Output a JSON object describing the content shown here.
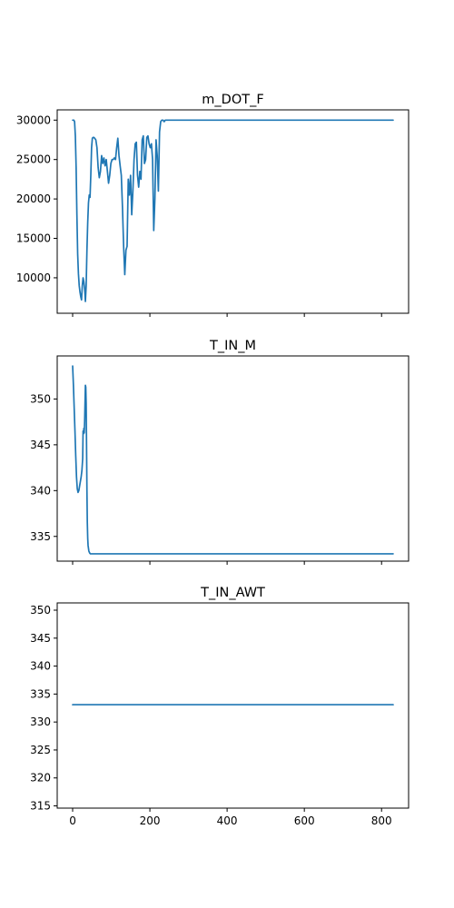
{
  "colors": {
    "series": "#1f77b4"
  },
  "chart_data": [
    {
      "type": "line",
      "title": "m_DOT_F",
      "xlim": [
        -40,
        870
      ],
      "ylim": [
        5500,
        31300
      ],
      "yticks": [
        10000,
        15000,
        20000,
        25000,
        30000
      ],
      "xticks": [
        0,
        200,
        400,
        600,
        800
      ],
      "show_xtick_labels": false,
      "grid": false,
      "series": [
        {
          "x": [
            0,
            3,
            5,
            7,
            9,
            11,
            13,
            15,
            17,
            19,
            21,
            23,
            25,
            27,
            29,
            31,
            33,
            35,
            37,
            39,
            41,
            43,
            45,
            47,
            49,
            51,
            53,
            55,
            57,
            60,
            63,
            66,
            69,
            72,
            75,
            78,
            81,
            84,
            87,
            90,
            93,
            96,
            99,
            102,
            105,
            108,
            111,
            114,
            117,
            120,
            123,
            126,
            129,
            132,
            135,
            138,
            141,
            144,
            147,
            150,
            153,
            156,
            159,
            162,
            165,
            168,
            171,
            174,
            177,
            180,
            183,
            186,
            189,
            192,
            195,
            198,
            201,
            204,
            207,
            210,
            213,
            216,
            219,
            222,
            225,
            228,
            231,
            234,
            237,
            240,
            245,
            250,
            260,
            270,
            280,
            290,
            300,
            310,
            400,
            500,
            600,
            700,
            830
          ],
          "y": [
            30000,
            30000,
            29800,
            28000,
            24000,
            18000,
            13000,
            10500,
            9000,
            8200,
            7600,
            7200,
            9000,
            10000,
            9500,
            8600,
            7000,
            9000,
            13500,
            17000,
            19500,
            20500,
            20200,
            23000,
            26500,
            27700,
            27800,
            27800,
            27700,
            27500,
            26500,
            24000,
            22700,
            23500,
            25500,
            24500,
            25200,
            24200,
            25000,
            23500,
            22000,
            23000,
            24500,
            25000,
            25000,
            25200,
            25000,
            26500,
            27700,
            25500,
            24200,
            23000,
            19000,
            14000,
            10400,
            13500,
            14000,
            22500,
            20500,
            23000,
            18000,
            21000,
            25000,
            27000,
            27200,
            23000,
            21500,
            23500,
            22500,
            27500,
            28000,
            24500,
            25000,
            27800,
            28000,
            27000,
            26500,
            27000,
            25000,
            16000,
            20000,
            27500,
            25500,
            21000,
            28500,
            29800,
            30000,
            30000,
            29800,
            30000,
            30000,
            30000,
            30000,
            30000,
            30000,
            30000,
            30000,
            30000,
            30000,
            30000,
            30000,
            30000,
            30000
          ]
        }
      ]
    },
    {
      "type": "line",
      "title": "T_IN_M",
      "xlim": [
        -40,
        870
      ],
      "ylim": [
        332.3,
        354.7
      ],
      "yticks": [
        335,
        340,
        345,
        350
      ],
      "xticks": [
        0,
        200,
        400,
        600,
        800
      ],
      "show_xtick_labels": false,
      "grid": false,
      "series": [
        {
          "x": [
            0,
            2,
            4,
            6,
            8,
            10,
            12,
            14,
            16,
            18,
            20,
            22,
            24,
            26,
            27,
            28,
            29,
            30,
            31,
            32,
            33,
            34,
            35,
            36,
            37,
            38,
            39,
            40,
            42,
            44,
            46,
            50,
            60,
            80,
            100,
            200,
            400,
            600,
            830
          ],
          "y": [
            353.6,
            351.5,
            349.0,
            346.5,
            343.8,
            341.5,
            340.2,
            339.8,
            340.0,
            340.5,
            341.0,
            341.5,
            342.2,
            343.5,
            346.5,
            346.2,
            346.8,
            346.3,
            347.5,
            349.5,
            351.5,
            351.3,
            349.5,
            345.0,
            340.0,
            336.5,
            334.8,
            334.0,
            333.4,
            333.2,
            333.1,
            333.1,
            333.1,
            333.1,
            333.1,
            333.1,
            333.1,
            333.1,
            333.1
          ]
        }
      ]
    },
    {
      "type": "line",
      "title": "T_IN_AWT",
      "xlim": [
        -40,
        870
      ],
      "ylim": [
        314.6,
        351.3
      ],
      "yticks": [
        315,
        320,
        325,
        330,
        335,
        340,
        345,
        350
      ],
      "xticks": [
        0,
        200,
        400,
        600,
        800
      ],
      "show_xtick_labels": true,
      "grid": false,
      "series": [
        {
          "x": [
            0,
            830
          ],
          "y": [
            333.1,
            333.1
          ]
        }
      ]
    }
  ]
}
